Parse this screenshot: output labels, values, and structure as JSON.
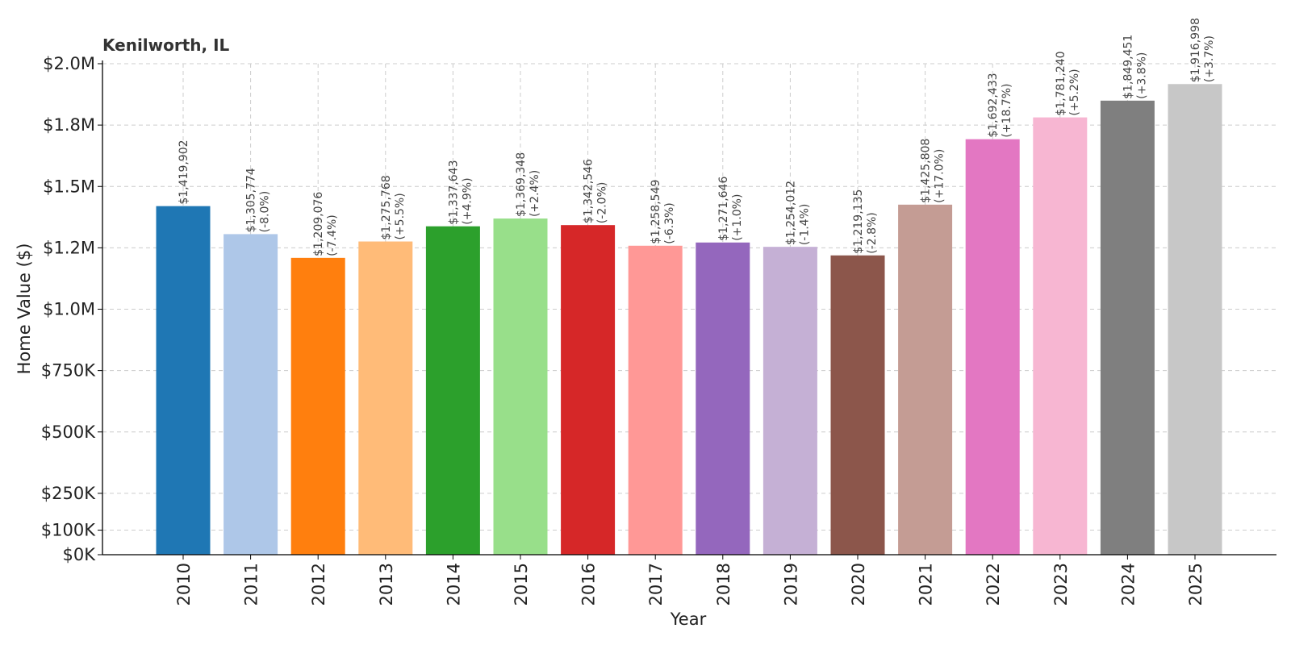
{
  "chart_data": {
    "type": "bar",
    "title": "Kenilworth, IL",
    "xlabel": "Year",
    "ylabel": "Home Value ($)",
    "ylim": [
      0,
      2000000
    ],
    "grid": true,
    "categories": [
      "2010",
      "2011",
      "2012",
      "2013",
      "2014",
      "2015",
      "2016",
      "2017",
      "2018",
      "2019",
      "2020",
      "2021",
      "2022",
      "2023",
      "2024",
      "2025"
    ],
    "values": [
      1419902,
      1305774,
      1209076,
      1275768,
      1337643,
      1369348,
      1342546,
      1258549,
      1271646,
      1254012,
      1219135,
      1425808,
      1692433,
      1781240,
      1849451,
      1916998
    ],
    "value_labels": [
      "$1,419,902",
      "$1,305,774",
      "$1,209,076",
      "$1,275,768",
      "$1,337,643",
      "$1,369,348",
      "$1,342,546",
      "$1,258,549",
      "$1,271,646",
      "$1,254,012",
      "$1,219,135",
      "$1,425,808",
      "$1,692,433",
      "$1,781,240",
      "$1,849,451",
      "$1,916,998"
    ],
    "change_labels": [
      "",
      "(-8.0%)",
      "(-7.4%)",
      "(+5.5%)",
      "(+4.9%)",
      "(+2.4%)",
      "(-2.0%)",
      "(-6.3%)",
      "(+1.0%)",
      "(-1.4%)",
      "(-2.8%)",
      "(+17.0%)",
      "(+18.7%)",
      "(+5.2%)",
      "(+3.8%)",
      "(+3.7%)"
    ],
    "colors": [
      "#1f77b4",
      "#aec7e8",
      "#ff7f0e",
      "#ffbb78",
      "#2ca02c",
      "#98df8a",
      "#d62728",
      "#ff9896",
      "#9467bd",
      "#c5b0d5",
      "#8c564b",
      "#c49c94",
      "#e377c2",
      "#f7b6d2",
      "#7f7f7f",
      "#c7c7c7"
    ],
    "yticks": [
      {
        "value": 0,
        "label": "$0K"
      },
      {
        "value": 100000,
        "label": "$100K"
      },
      {
        "value": 250000,
        "label": "$250K"
      },
      {
        "value": 500000,
        "label": "$500K"
      },
      {
        "value": 750000,
        "label": "$750K"
      },
      {
        "value": 1000000,
        "label": "$1.0M"
      },
      {
        "value": 1250000,
        "label": "$1.2M"
      },
      {
        "value": 1500000,
        "label": "$1.5M"
      },
      {
        "value": 1750000,
        "label": "$1.8M"
      },
      {
        "value": 2000000,
        "label": "$2.0M"
      }
    ]
  }
}
